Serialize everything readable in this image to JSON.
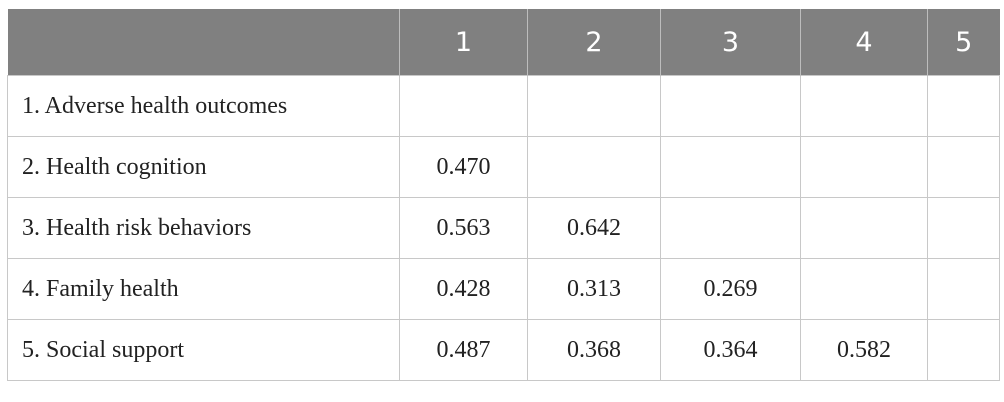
{
  "table": {
    "columns": [
      "1",
      "2",
      "3",
      "4",
      "5"
    ],
    "rows": [
      {
        "label": "1. Adverse health outcomes",
        "values": []
      },
      {
        "label": "2. Health cognition",
        "values": [
          "0.470"
        ]
      },
      {
        "label": "3. Health risk behaviors",
        "values": [
          "0.563",
          "0.642"
        ]
      },
      {
        "label": "4. Family health",
        "values": [
          "0.428",
          "0.313",
          "0.269"
        ]
      },
      {
        "label": "5. Social support",
        "values": [
          "0.487",
          "0.368",
          "0.364",
          "0.582"
        ]
      }
    ]
  }
}
